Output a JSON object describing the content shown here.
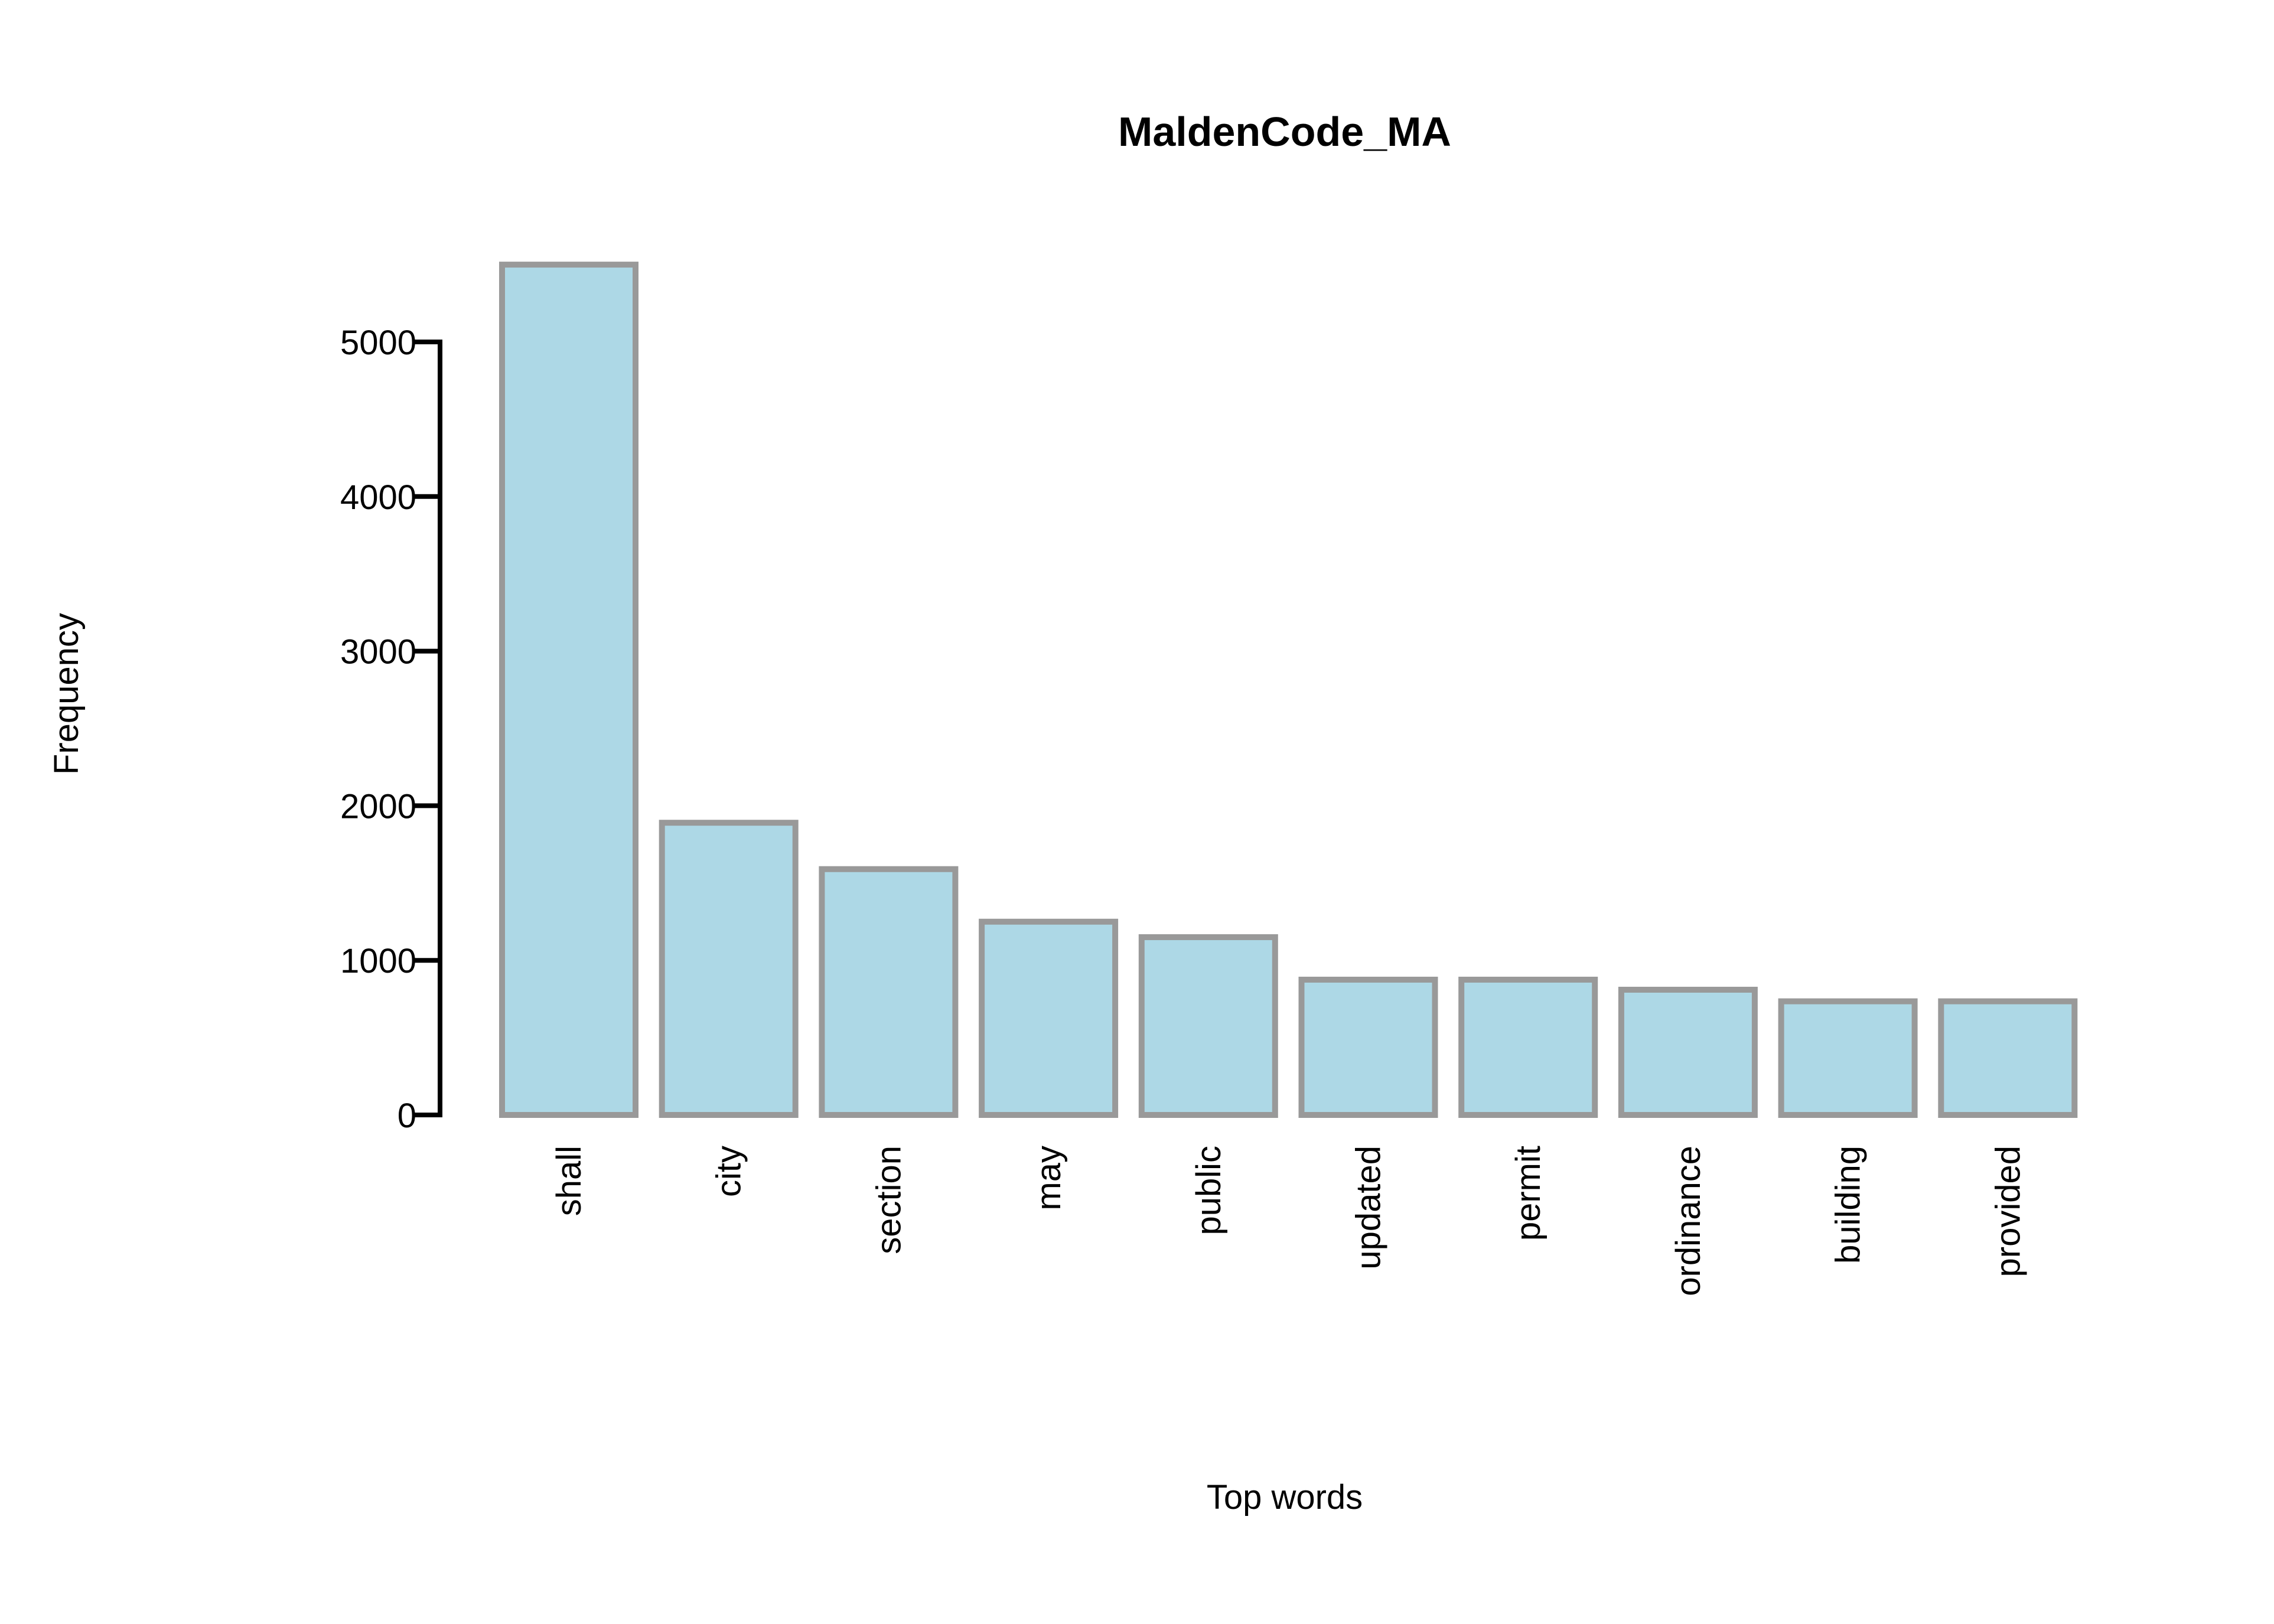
{
  "chart_data": {
    "type": "bar",
    "title": "MaldenCode_MA",
    "xlabel": "Top words",
    "ylabel": "Frequency",
    "categories": [
      "shall",
      "city",
      "section",
      "may",
      "public",
      "updated",
      "permit",
      "ordinance",
      "building",
      "provided"
    ],
    "values": [
      5500,
      1890,
      1590,
      1250,
      1150,
      875,
      875,
      810,
      735,
      735
    ],
    "yticks": [
      0,
      1000,
      2000,
      3000,
      4000,
      5000
    ],
    "ylim": [
      0,
      5000
    ],
    "grid": false,
    "legend": "none",
    "colors": {
      "bar_fill": "#add8e6",
      "bar_stroke": "#999999",
      "axis": "#000000",
      "text": "#000000"
    }
  }
}
